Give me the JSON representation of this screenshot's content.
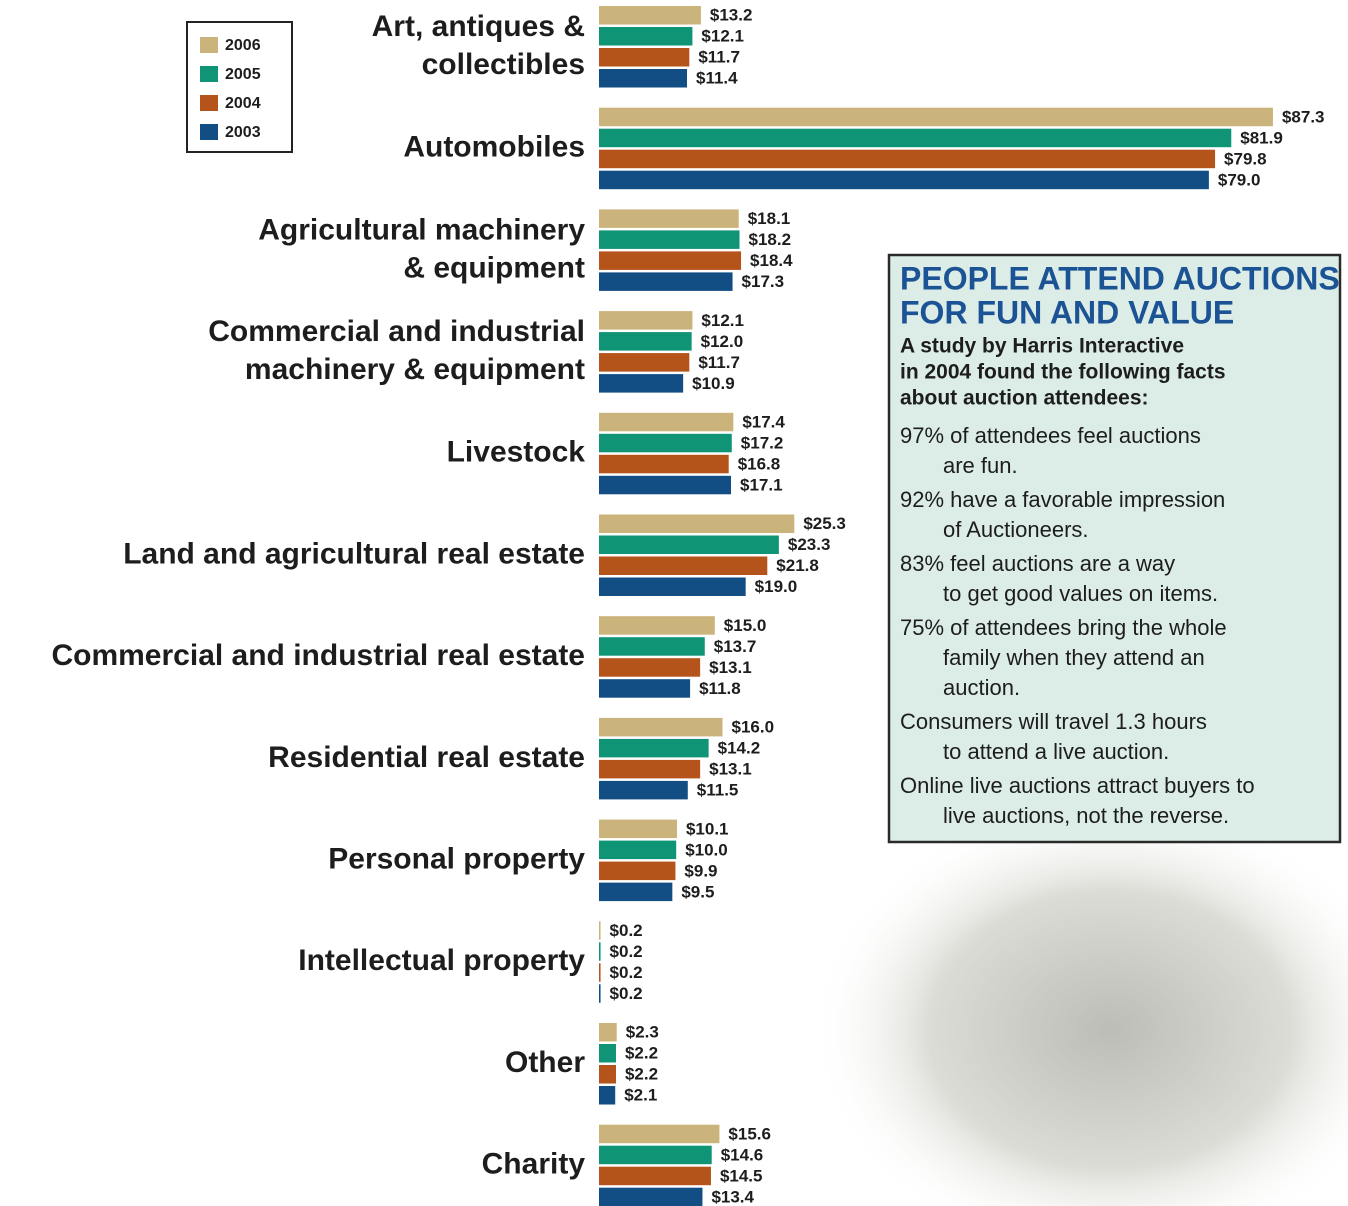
{
  "chart_data": {
    "type": "bar",
    "orientation": "horizontal",
    "categories": [
      [
        "Art, antiques &",
        "collectibles"
      ],
      [
        "Automobiles"
      ],
      [
        "Agricultural machinery",
        "& equipment"
      ],
      [
        "Commercial and industrial",
        "machinery & equipment"
      ],
      [
        "Livestock"
      ],
      [
        "Land and agricultural real estate"
      ],
      [
        "Commercial and industrial real estate"
      ],
      [
        "Residential real estate"
      ],
      [
        "Personal property"
      ],
      [
        "Intellectual property"
      ],
      [
        "Other"
      ],
      [
        "Charity"
      ]
    ],
    "series": [
      {
        "name": "2006",
        "color": "#cbb37c",
        "values": [
          13.2,
          87.3,
          18.1,
          12.1,
          17.4,
          25.3,
          15.0,
          16.0,
          10.1,
          0.2,
          2.3,
          15.6
        ],
        "value_labels": [
          "$13.2",
          "$87.3",
          "$18.1",
          "$12.1",
          "$17.4",
          "$25.3",
          "$15.0",
          "$16.0",
          "$10.1",
          "$0.2",
          "$2.3",
          "$15.6"
        ]
      },
      {
        "name": "2005",
        "color": "#0f9476",
        "values": [
          12.1,
          81.9,
          18.2,
          12.0,
          17.2,
          23.3,
          13.7,
          14.2,
          10.0,
          0.2,
          2.2,
          14.6
        ],
        "value_labels": [
          "$12.1",
          "$81.9",
          "$18.2",
          "$12.0",
          "$17.2",
          "$23.3",
          "$13.7",
          "$14.2",
          "$10.0",
          "$0.2",
          "$2.2",
          "$14.6"
        ]
      },
      {
        "name": "2004",
        "color": "#b4531a",
        "values": [
          11.7,
          79.8,
          18.4,
          11.7,
          16.8,
          21.8,
          13.1,
          13.1,
          9.9,
          0.2,
          2.2,
          14.5
        ],
        "value_labels": [
          "$11.7",
          "$79.8",
          "$18.4",
          "$11.7",
          "$16.8",
          "$21.8",
          "$13.1",
          "$13.1",
          "$9.9",
          "$0.2",
          "$2.2",
          "$14.5"
        ]
      },
      {
        "name": "2003",
        "color": "#124d84",
        "values": [
          11.4,
          79.0,
          17.3,
          10.9,
          17.1,
          19.0,
          11.8,
          11.5,
          9.5,
          0.2,
          2.1,
          13.4
        ],
        "value_labels": [
          "$11.4",
          "$79.0",
          "$17.3",
          "$10.9",
          "$17.1",
          "$19.0",
          "$11.8",
          "$11.5",
          "$9.5",
          "$0.2",
          "$2.1",
          "$13.4"
        ]
      }
    ],
    "xlim": [
      0,
      90
    ]
  },
  "sidebar": {
    "title": [
      "PEOPLE ATTEND AUCTIONS",
      "FOR FUN AND VALUE"
    ],
    "intro": [
      "A study by Harris Interactive",
      "in 2004 found the following facts",
      "about auction attendees:"
    ],
    "facts": [
      [
        "97% of attendees feel auctions",
        "are fun."
      ],
      [
        "92% have a favorable impression",
        "of Auctioneers."
      ],
      [
        "83% feel auctions are a way",
        "to get good values on items."
      ],
      [
        "75% of attendees bring the whole",
        "family when they attend an",
        "auction."
      ],
      [
        "Consumers will travel 1.3 hours",
        "to attend a live auction."
      ],
      [
        "Online live auctions attract buyers to",
        "live auctions, not the reverse."
      ]
    ]
  }
}
